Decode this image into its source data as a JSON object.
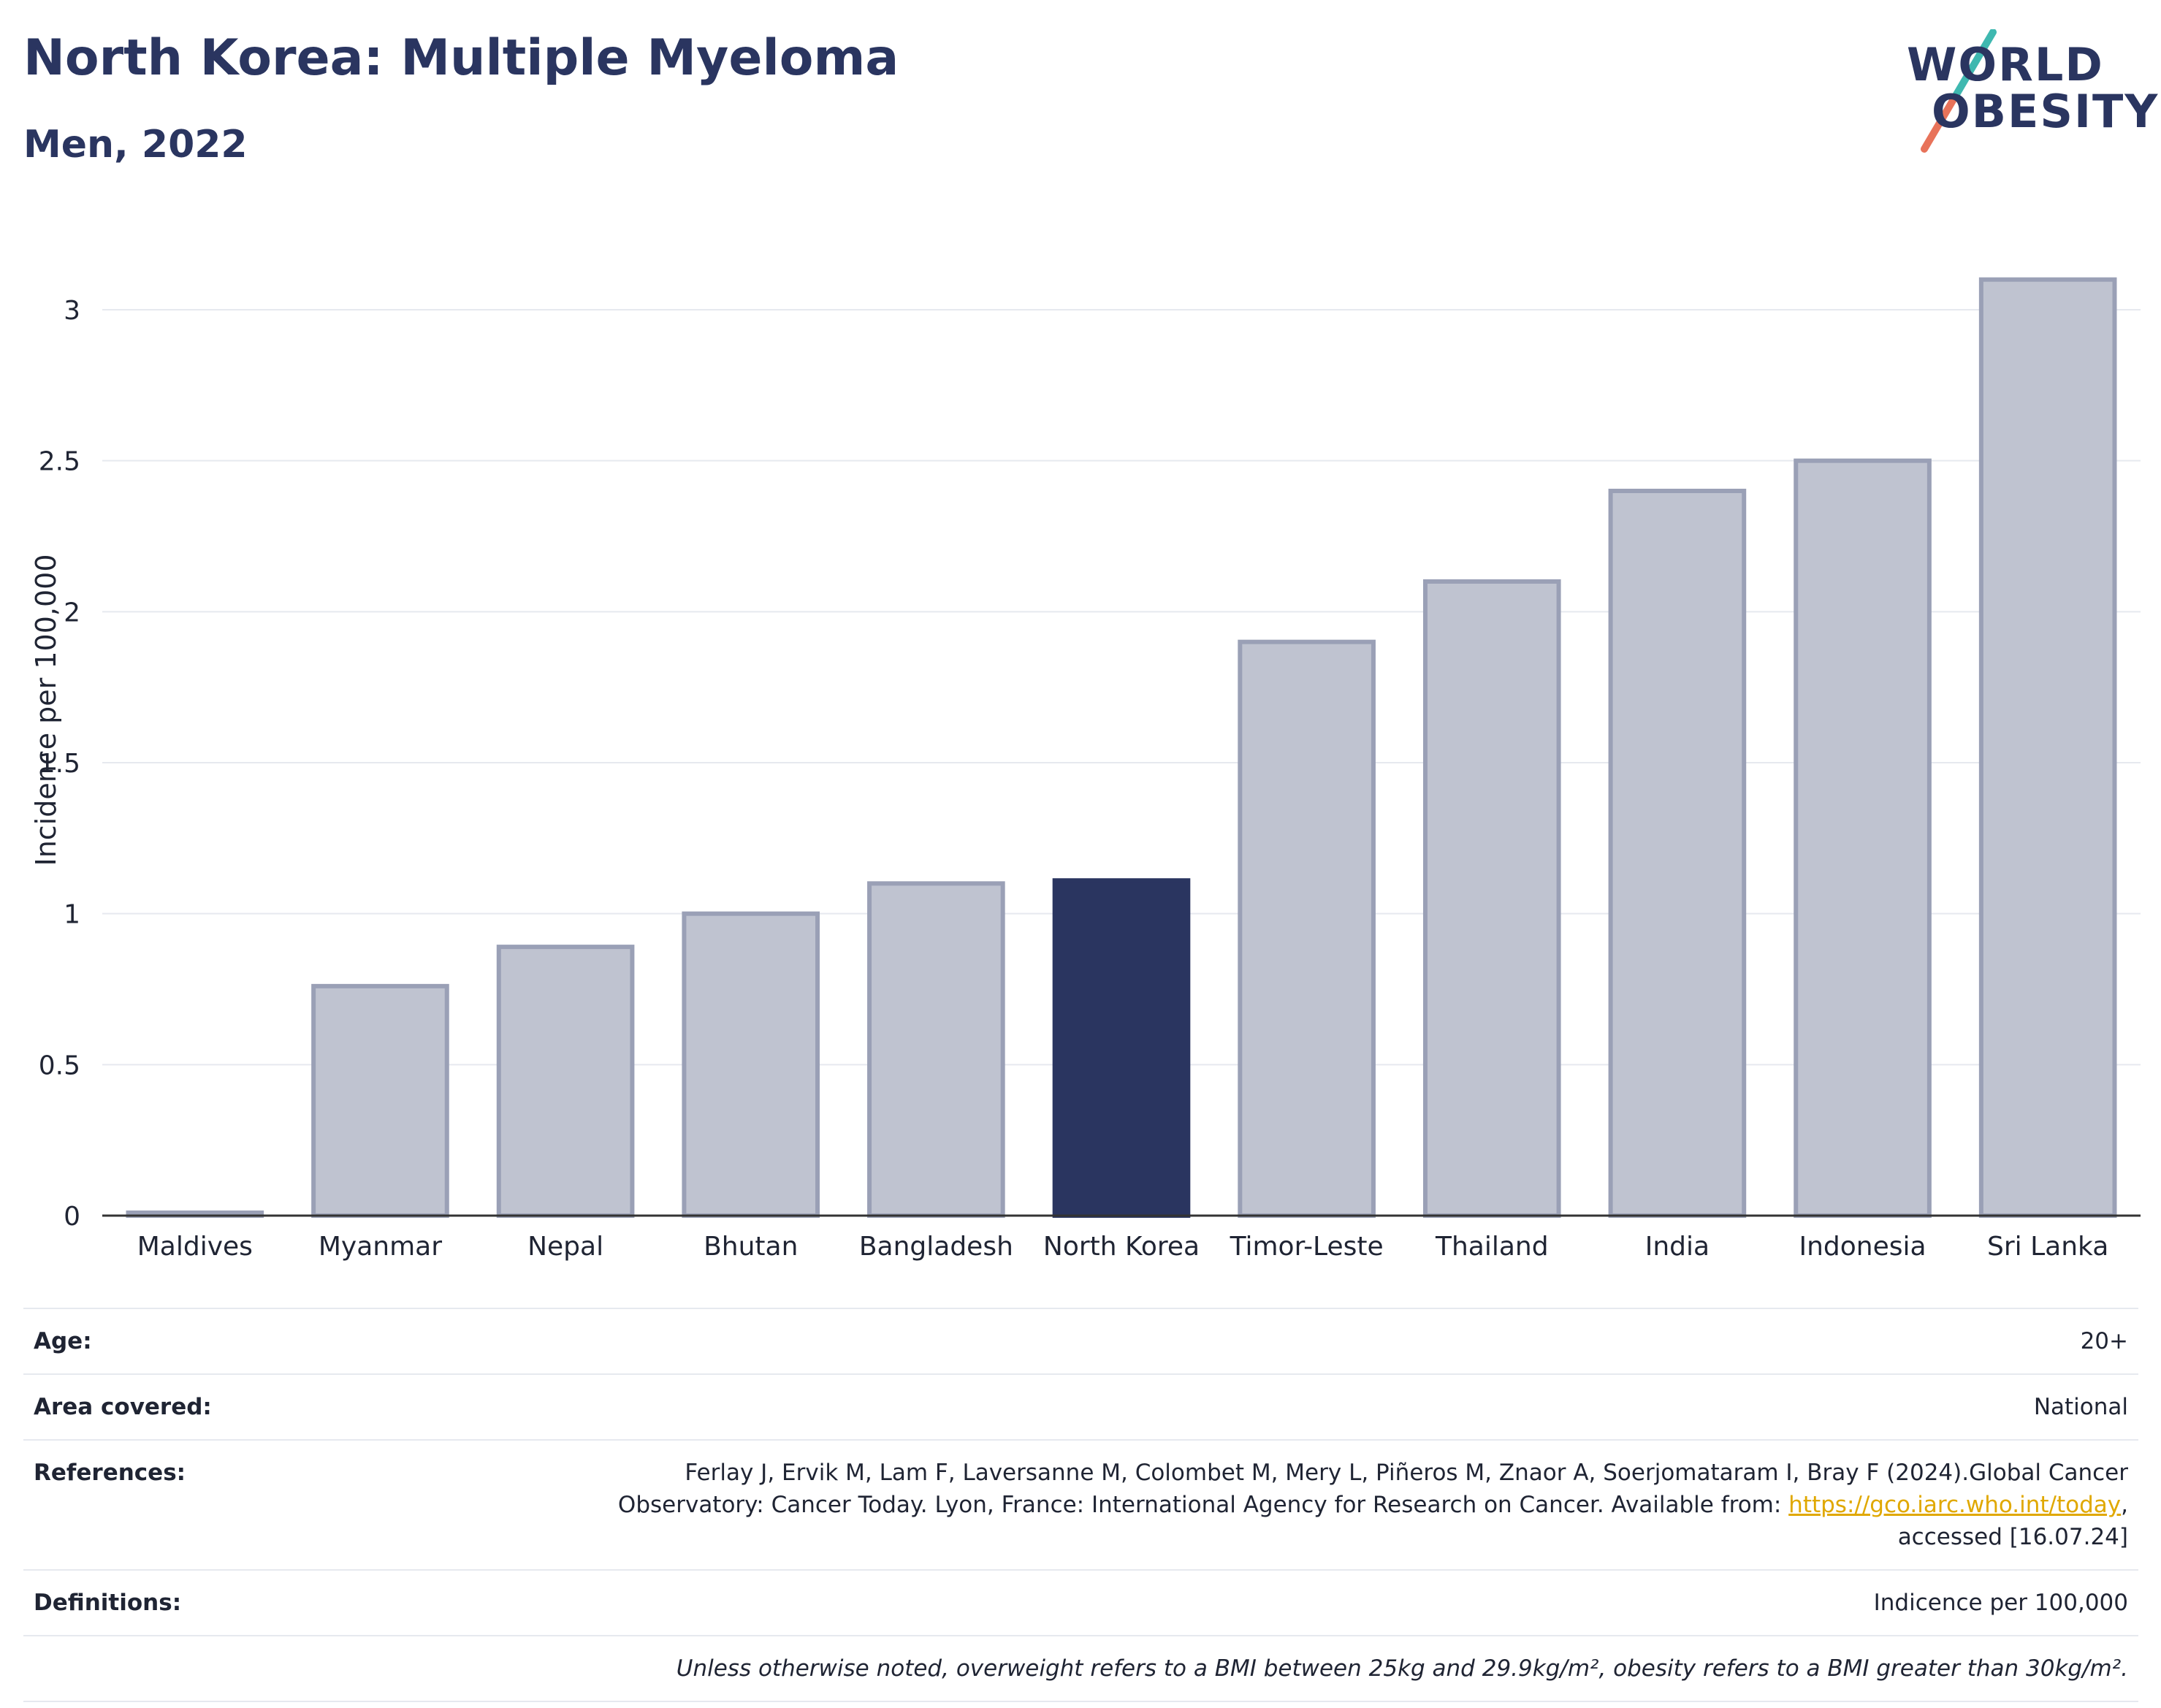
{
  "header": {
    "title": "North Korea: Multiple Myeloma",
    "subtitle": "Men, 2022"
  },
  "logo": {
    "line1": "WORLD",
    "line2": "OBESITY",
    "colors": {
      "text": "#2a3560",
      "slash_top": "#3fb8b0",
      "slash_bottom": "#e8735a"
    }
  },
  "chart_data": {
    "type": "bar",
    "categories": [
      "Maldives",
      "Myanmar",
      "Nepal",
      "Bhutan",
      "Bangladesh",
      "North Korea",
      "Timor-Leste",
      "Thailand",
      "India",
      "Indonesia",
      "Sri Lanka"
    ],
    "values": [
      0.0,
      0.76,
      0.89,
      1.0,
      1.1,
      1.11,
      1.9,
      2.1,
      2.4,
      2.5,
      3.1
    ],
    "highlight": "North Korea",
    "ylabel": "Incidence per 100,000",
    "xlabel": "",
    "ylim": [
      0,
      3.3
    ],
    "yticks": [
      0,
      0.5,
      1,
      1.5,
      2,
      2.5,
      3
    ],
    "ytick_labels": [
      "0",
      "0.5",
      "1",
      "1.5",
      "2",
      "2.5",
      "3"
    ],
    "grid": true,
    "colors": {
      "bar": "#bfc3d0",
      "bar_edge": "#9aa0b6",
      "highlight": "#2a3560",
      "grid": "#e6e9ef",
      "axis": "#333333"
    }
  },
  "meta": {
    "age_label": "Age:",
    "age_value": "20+",
    "area_label": "Area covered:",
    "area_value": "National",
    "references_label": "References:",
    "references_line1": "Ferlay J, Ervik M, Lam F, Laversanne M, Colombet M, Mery L, Piñeros M, Znaor A, Soerjomataram I, Bray F (2024).Global Cancer",
    "references_line2": "Observatory: Cancer Today. Lyon, France: International Agency for Research on Cancer. Available from: ",
    "references_link": "https://gco.iarc.who.int/today",
    "references_line2_end": ",",
    "references_line3": "accessed [16.07.24]",
    "definitions_label": "Definitions:",
    "definitions_value": "Indicence per 100,000",
    "note": "Unless otherwise noted, overweight refers to a BMI between 25kg and 29.9kg/m², obesity refers to a BMI greater than 30kg/m²."
  }
}
